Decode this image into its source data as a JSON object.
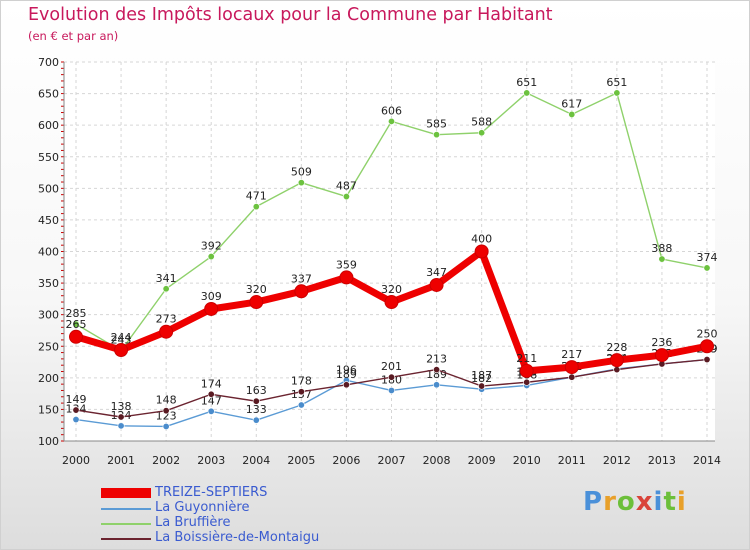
{
  "header": {
    "title": "Evolution des Impôts locaux pour la Commune par Habitant",
    "subtitle": "(en € et par an)"
  },
  "logo": {
    "text": "Proxiti"
  },
  "chart_data": {
    "type": "line",
    "title": "Evolution des Impôts locaux pour la Commune par Habitant",
    "subtitle": "(en € et par an)",
    "x": [
      2000,
      2001,
      2002,
      2003,
      2004,
      2005,
      2006,
      2007,
      2008,
      2009,
      2010,
      2011,
      2012,
      2013,
      2014
    ],
    "ylim": [
      100,
      700
    ],
    "yticks": [
      100,
      150,
      200,
      250,
      300,
      350,
      400,
      450,
      500,
      550,
      600,
      650,
      700
    ],
    "grid": true,
    "legend_position": "bottom-left",
    "series": [
      {
        "name": "La Bruffière",
        "color": "#8fd16b",
        "marker": "#6cc23f",
        "values": [
          285,
          243,
          341,
          392,
          471,
          509,
          487,
          606,
          585,
          588,
          651,
          617,
          651,
          388,
          374
        ]
      },
      {
        "name": "La Guyonnière",
        "color": "#5b9bd5",
        "marker": "#4a8ccc",
        "values": [
          134,
          124,
          123,
          147,
          133,
          157,
          196,
          180,
          189,
          182,
          188,
          201,
          214,
          222,
          229
        ]
      },
      {
        "name": "La Boissière-de-Montaigu",
        "color": "#6b2430",
        "marker": "#5a1a22",
        "values": [
          149,
          138,
          148,
          174,
          163,
          178,
          189,
          201,
          213,
          187,
          193,
          201,
          213,
          222,
          229
        ]
      },
      {
        "name": "TREIZE-SEPTIERS",
        "color": "#ee0000",
        "marker": "#ee0000",
        "values": [
          265,
          244,
          273,
          309,
          320,
          337,
          359,
          320,
          347,
          400,
          211,
          217,
          228,
          236,
          250
        ]
      }
    ]
  },
  "legend": {
    "items": [
      {
        "label": "TREIZE-SEPTIERS",
        "color": "#ee0000"
      },
      {
        "label": "La Guyonnière",
        "color": "#5b9bd5"
      },
      {
        "label": "La Bruffière",
        "color": "#8fd16b"
      },
      {
        "label": "La Boissière-de-Montaigu",
        "color": "#6b2430"
      }
    ]
  }
}
